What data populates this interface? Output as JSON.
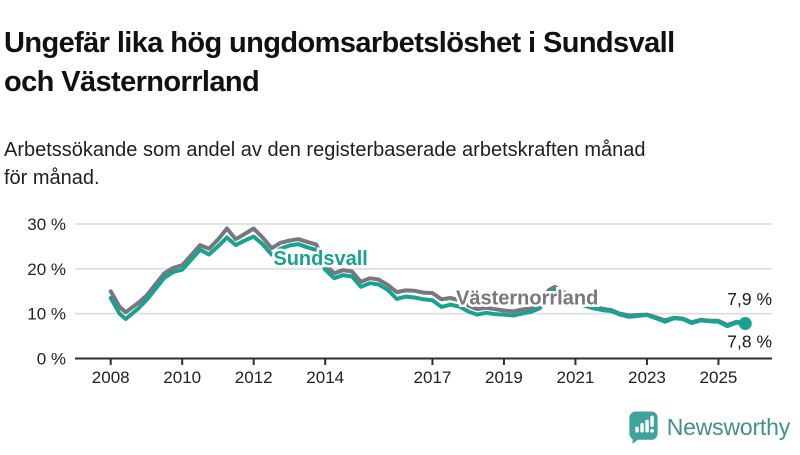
{
  "header": {
    "title": "Ungefär lika hög ungdomsarbetslöshet i Sundsvall\noch Västernorrland",
    "subtitle": "Arbetssökande som andel av den registerbaserade arbetskraften månad\nför månad."
  },
  "chart_data": {
    "type": "line",
    "unit": "%",
    "grid": "horizontal",
    "xlim": [
      2007.0,
      2026.4
    ],
    "ylim": [
      0,
      32
    ],
    "x_ticks": [
      "2008",
      "2010",
      "2012",
      "2014",
      "2017",
      "2019",
      "2021",
      "2023",
      "2025"
    ],
    "x_tick_years": [
      2008,
      2010,
      2012,
      2014,
      2017,
      2019,
      2021,
      2023,
      2025
    ],
    "y_ticks": [
      {
        "value": 0,
        "label": "0 %"
      },
      {
        "value": 10,
        "label": "10 %"
      },
      {
        "value": 20,
        "label": "20 %"
      },
      {
        "value": 30,
        "label": "30 %"
      }
    ],
    "x": [
      2008.0,
      2008.25,
      2008.42,
      2008.75,
      2009.0,
      2009.25,
      2009.5,
      2009.75,
      2010.0,
      2010.25,
      2010.5,
      2010.75,
      2011.0,
      2011.25,
      2011.5,
      2011.75,
      2012.0,
      2012.25,
      2012.5,
      2012.75,
      2013.0,
      2013.25,
      2013.5,
      2013.75,
      2014.0,
      2014.25,
      2014.5,
      2014.75,
      2015.0,
      2015.25,
      2015.5,
      2015.75,
      2016.0,
      2016.25,
      2016.5,
      2016.75,
      2017.0,
      2017.25,
      2017.5,
      2017.75,
      2018.0,
      2018.25,
      2018.5,
      2018.75,
      2019.0,
      2019.25,
      2019.5,
      2019.75,
      2020.0,
      2020.25,
      2020.42,
      2020.75,
      2021.0,
      2021.25,
      2021.5,
      2021.75,
      2022.0,
      2022.25,
      2022.5,
      2022.75,
      2023.0,
      2023.25,
      2023.5,
      2023.75,
      2024.0,
      2024.25,
      2024.5,
      2024.75,
      2025.0,
      2025.25,
      2025.5,
      2025.75
    ],
    "series": [
      {
        "name": "Västernorrland",
        "color": "#77787b",
        "label_anchor": {
          "x": 2017.66,
          "y": 12.0
        },
        "end_label": "7,9 %",
        "end_value": 7.9,
        "end_dot": false,
        "values": [
          15.0,
          11.5,
          10.3,
          12.3,
          14.0,
          16.5,
          19.0,
          20.2,
          20.8,
          23.0,
          25.3,
          24.5,
          26.5,
          29.0,
          26.6,
          27.8,
          29.0,
          27.0,
          24.6,
          25.8,
          26.3,
          26.6,
          26.0,
          25.4,
          21.0,
          19.0,
          19.7,
          19.4,
          17.1,
          17.9,
          17.6,
          16.4,
          14.8,
          15.2,
          15.1,
          14.7,
          14.6,
          13.2,
          13.5,
          13.0,
          11.8,
          11.0,
          11.3,
          11.0,
          10.7,
          10.5,
          10.9,
          11.2,
          11.8,
          15.2,
          16.0,
          14.4,
          13.0,
          12.2,
          11.6,
          11.1,
          10.8,
          10.0,
          9.6,
          9.7,
          9.8,
          9.2,
          8.5,
          9.1,
          8.9,
          8.1,
          8.6,
          8.4,
          8.4,
          7.5,
          8.2,
          7.9
        ]
      },
      {
        "name": "Sundsvall",
        "color": "#17a293",
        "label_anchor": {
          "x": 2012.55,
          "y": 20.9
        },
        "end_label": "7,8 %",
        "end_value": 7.8,
        "end_dot": true,
        "values": [
          13.5,
          10.0,
          8.8,
          11.0,
          13.0,
          15.5,
          18.0,
          19.3,
          19.8,
          22.0,
          24.3,
          23.2,
          25.0,
          27.0,
          25.3,
          26.3,
          27.2,
          25.5,
          23.2,
          24.5,
          25.2,
          25.5,
          24.8,
          24.2,
          19.8,
          17.9,
          18.6,
          18.3,
          16.0,
          16.8,
          16.5,
          15.3,
          13.3,
          13.8,
          13.6,
          13.2,
          13.0,
          11.5,
          12.0,
          11.6,
          10.5,
          9.8,
          10.2,
          9.9,
          9.8,
          9.6,
          10.0,
          10.4,
          11.2,
          14.5,
          15.3,
          13.8,
          12.5,
          11.8,
          11.2,
          10.8,
          10.6,
          9.8,
          9.3,
          9.5,
          9.7,
          9.0,
          8.2,
          9.0,
          8.8,
          7.9,
          8.5,
          8.3,
          8.2,
          7.2,
          8.0,
          7.8
        ]
      }
    ]
  },
  "footer": {
    "brand": "Newsworthy"
  },
  "colors": {
    "accent_teal": "#17a293",
    "series_gray": "#77787b",
    "grid": "#dadada",
    "axis": "#2d2d2d",
    "tick_text": "#222222",
    "end_label_text": "#1a1a1a",
    "brand_teal": "#3fa39b",
    "brand_text": "#41908d"
  }
}
